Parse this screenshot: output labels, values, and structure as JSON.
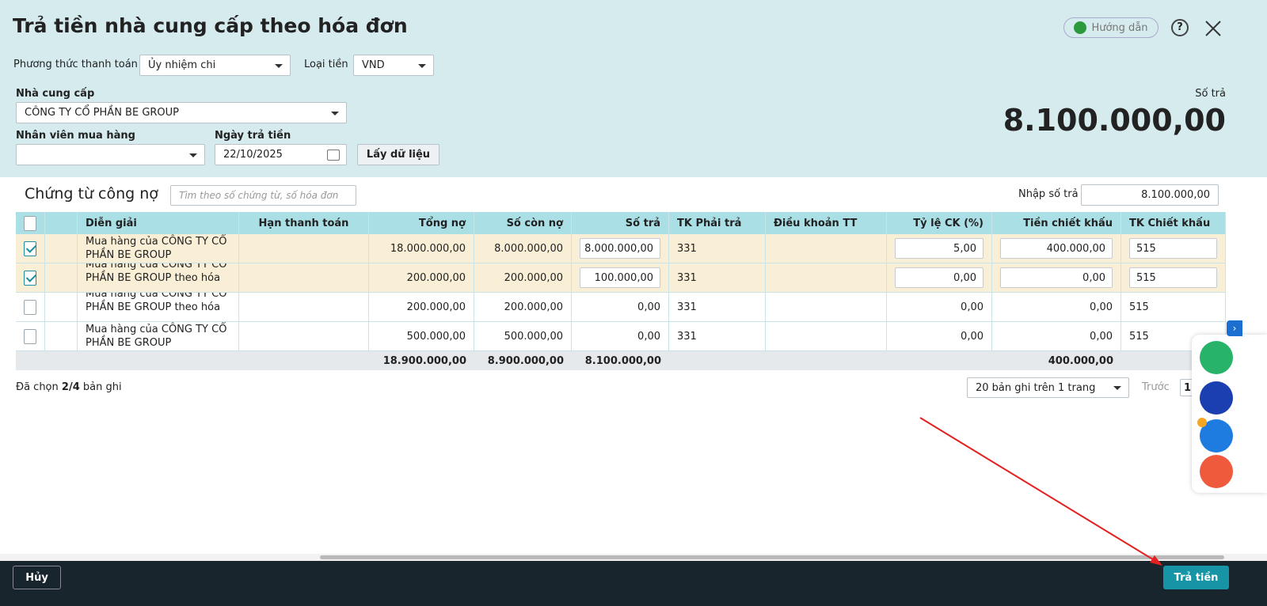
{
  "header": {
    "title": "Trả tiền nhà cung cấp theo hóa đơn",
    "help_button": "Hướng dẫn"
  },
  "form": {
    "payment_method_label": "Phương thức thanh toán",
    "payment_method": "Ủy nhiệm chi",
    "currency_label": "Loại tiền",
    "currency": "VND",
    "supplier_label": "Nhà cung cấp",
    "supplier": "CÔNG TY CỔ PHẦN BE GROUP",
    "staff_label": "Nhân viên mua hàng",
    "date_label": "Ngày trả tiền",
    "date": "22/10/2025",
    "fetch_button": "Lấy dữ liệu",
    "amount_label": "Số trả",
    "amount": "8.100.000,00"
  },
  "section": {
    "title": "Chứng từ công nợ",
    "search_placeholder": "Tìm theo số chứng từ, số hóa đơn",
    "input_label": "Nhập số trả",
    "input_value": "8.100.000,00"
  },
  "table": {
    "columns": [
      "Diễn giải",
      "Hạn thanh toán",
      "Tổng nợ",
      "Số còn nợ",
      "Số trả",
      "TK Phải trả",
      "Điều khoản TT",
      "Tỷ lệ CK (%)",
      "Tiền chiết khấu",
      "TK Chiết khấu"
    ],
    "rows": [
      {
        "checked": true,
        "description": "Mua hàng của CÔNG TY CỔ PHẦN BE GROUP",
        "total": "18.000.000,00",
        "remaining": "8.000.000,00",
        "pay": "8.000.000,00",
        "account": "331",
        "discount_rate": "5,00",
        "discount": "400.000,00",
        "discount_account": "515"
      },
      {
        "checked": true,
        "description": "Mua hàng của CÔNG TY CỔ PHẦN BE GROUP theo hóa ...",
        "total": "200.000,00",
        "remaining": "200.000,00",
        "pay": "100.000,00",
        "account": "331",
        "discount_rate": "0,00",
        "discount": "0,00",
        "discount_account": "515"
      },
      {
        "checked": false,
        "description": "Mua hàng của CÔNG TY CỔ PHẦN BE GROUP theo hóa ...",
        "total": "200.000,00",
        "remaining": "200.000,00",
        "pay": "0,00",
        "account": "331",
        "discount_rate": "0,00",
        "discount": "0,00",
        "discount_account": "515"
      },
      {
        "checked": false,
        "description": "Mua hàng của CÔNG TY CỔ PHẦN BE GROUP",
        "total": "500.000,00",
        "remaining": "500.000,00",
        "pay": "0,00",
        "account": "331",
        "discount_rate": "0,00",
        "discount": "0,00",
        "discount_account": "515"
      }
    ],
    "totals": {
      "total": "18.900.000,00",
      "remaining": "8.900.000,00",
      "pay": "8.100.000,00",
      "discount": "400.000,00"
    }
  },
  "pager": {
    "selected_prefix": "Đã chọn",
    "selected_count": "2/4",
    "selected_suffix": "bản ghi",
    "page_size": "20 bản ghi trên 1 trang",
    "prev": "Trước",
    "page": "1"
  },
  "footer": {
    "cancel": "Hủy",
    "submit": "Trả tiền"
  }
}
